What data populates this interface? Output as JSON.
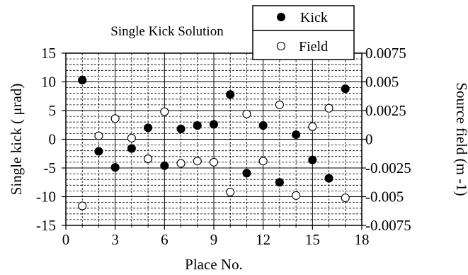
{
  "chart_data": {
    "type": "scatter",
    "title": "Single Kick Solution",
    "xlabel": "Place No.",
    "ylabel": "Single kick ( μrad)",
    "y2label": "Source field (m -1)",
    "xlim": [
      0,
      18
    ],
    "ylim": [
      -15,
      15
    ],
    "y2lim": [
      -0.0075,
      0.0075
    ],
    "xticks": [
      "0",
      "3",
      "6",
      "9",
      "12",
      "15",
      "18"
    ],
    "yticks": [
      "-15",
      "-10",
      "-5",
      "0",
      "5",
      "10",
      "15"
    ],
    "y2ticks": [
      "-0.0075",
      "-0.005",
      "-0.0025",
      "0",
      "0.0025",
      "0.005",
      "0.0075"
    ],
    "grid": true,
    "legend_position": "top-right",
    "series": [
      {
        "name": "Kick",
        "marker": "filled-circle",
        "axis": "left",
        "points": [
          {
            "x": 1,
            "y": 10.3
          },
          {
            "x": 2,
            "y": -2.1
          },
          {
            "x": 3,
            "y": -4.9
          },
          {
            "x": 4,
            "y": -1.6
          },
          {
            "x": 5,
            "y": 2.0
          },
          {
            "x": 6,
            "y": -4.6
          },
          {
            "x": 7,
            "y": 1.8
          },
          {
            "x": 8,
            "y": 2.4
          },
          {
            "x": 9,
            "y": 2.6
          },
          {
            "x": 10,
            "y": 7.8
          },
          {
            "x": 11,
            "y": -5.9
          },
          {
            "x": 12,
            "y": 2.4
          },
          {
            "x": 13,
            "y": -7.5
          },
          {
            "x": 14,
            "y": 0.8
          },
          {
            "x": 15,
            "y": -3.6
          },
          {
            "x": 16,
            "y": -6.8
          },
          {
            "x": 17,
            "y": 8.8
          }
        ]
      },
      {
        "name": "Field",
        "marker": "open-circle",
        "axis": "right",
        "points": [
          {
            "x": 1,
            "y": -0.0058
          },
          {
            "x": 2,
            "y": 0.0003
          },
          {
            "x": 3,
            "y": 0.0018
          },
          {
            "x": 4,
            "y": 0.0001
          },
          {
            "x": 5,
            "y": -0.0017
          },
          {
            "x": 6,
            "y": 0.0024
          },
          {
            "x": 7,
            "y": -0.0021
          },
          {
            "x": 8,
            "y": -0.0019
          },
          {
            "x": 9,
            "y": -0.002
          },
          {
            "x": 10,
            "y": -0.0046
          },
          {
            "x": 11,
            "y": 0.0022
          },
          {
            "x": 12,
            "y": -0.0019
          },
          {
            "x": 13,
            "y": 0.003
          },
          {
            "x": 14,
            "y": -0.0049
          },
          {
            "x": 15,
            "y": 0.0011
          },
          {
            "x": 16,
            "y": 0.0027
          },
          {
            "x": 17,
            "y": -0.0051
          }
        ]
      }
    ]
  }
}
